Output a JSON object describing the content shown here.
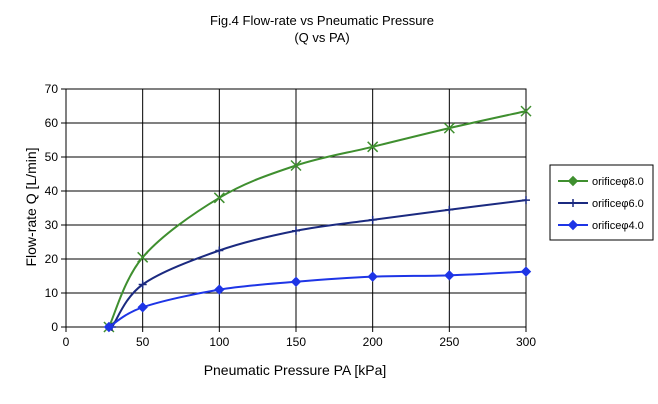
{
  "chart_data": {
    "type": "line",
    "title": "Fig.4 Flow-rate vs Pneumatic Pressure",
    "subtitle": "(Q vs PA)",
    "xlabel": "Pneumatic Pressure PA [kPa]",
    "ylabel": "Flow-rate Q [L/min]",
    "xlim": [
      0,
      300
    ],
    "ylim": [
      0,
      70
    ],
    "xticks": [
      "0",
      "50",
      "100",
      "150",
      "200",
      "250",
      "300"
    ],
    "yticks": [
      "0",
      "10",
      "20",
      "30",
      "40",
      "50",
      "60",
      "70"
    ],
    "grid": true,
    "legend_position": "right",
    "series": [
      {
        "name": "orificeφ8.0",
        "color": "#3f8f2f",
        "marker": "x",
        "points": [
          [
            28,
            0
          ],
          [
            50,
            20.5
          ],
          [
            100,
            38
          ],
          [
            150,
            47.5
          ],
          [
            200,
            53
          ],
          [
            250,
            58.5
          ],
          [
            300,
            63.5
          ]
        ]
      },
      {
        "name": "orificeφ6.0",
        "color": "#1b2a80",
        "marker": "plus",
        "points": [
          [
            30,
            0
          ],
          [
            50,
            12.5
          ],
          [
            100,
            22.5
          ],
          [
            150,
            28.3
          ],
          [
            200,
            31.5
          ],
          [
            250,
            34.5
          ],
          [
            300,
            37.3
          ]
        ]
      },
      {
        "name": "orificeφ4.0",
        "color": "#1e35e6",
        "marker": "diamond",
        "points": [
          [
            28,
            0
          ],
          [
            50,
            5.8
          ],
          [
            100,
            11
          ],
          [
            150,
            13.3
          ],
          [
            200,
            14.8
          ],
          [
            250,
            15.2
          ],
          [
            300,
            16.3
          ]
        ]
      }
    ]
  }
}
